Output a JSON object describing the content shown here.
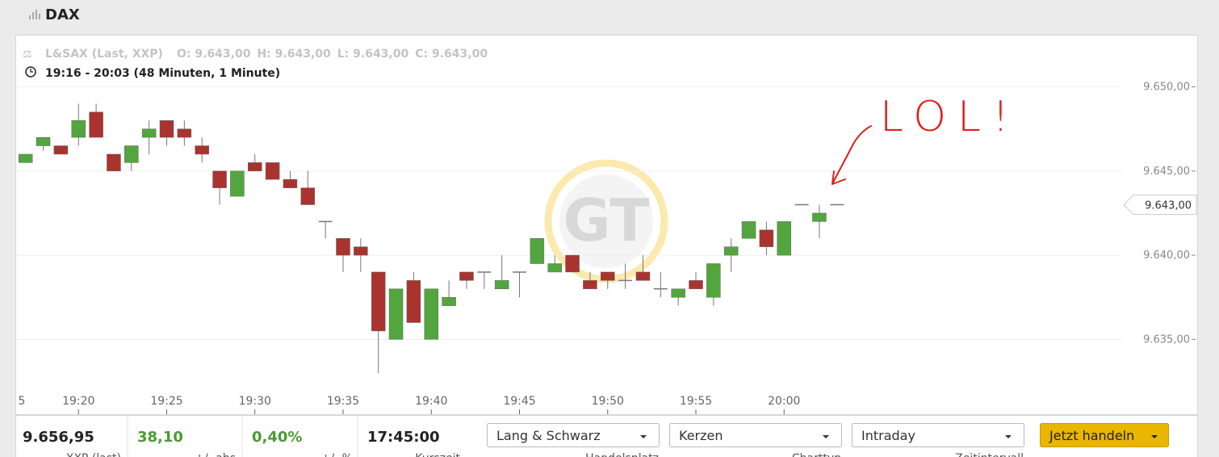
{
  "header": {
    "title": "DAX"
  },
  "chart_data": {
    "type": "candlestick",
    "source_info": "L&SAX (Last, XXP)",
    "ohlc_info": [
      "O: 9.643,00",
      "H: 9.643,00",
      "L: 9.643,00",
      "C: 9.643,00"
    ],
    "range_info": "19:16 - 20:03 (48 Minuten, 1 Minute)",
    "categories": [
      "5",
      null,
      null,
      null,
      null,
      "19:20",
      null,
      null,
      null,
      null,
      "19:25",
      null,
      null,
      null,
      null,
      "19:30",
      null,
      null,
      null,
      null,
      "19:35",
      null,
      null,
      null,
      null,
      "19:40",
      null,
      null,
      null,
      null,
      "19:45",
      null,
      null,
      null,
      null,
      "19:50",
      null,
      null,
      null,
      null,
      "19:55",
      null,
      null,
      null,
      null,
      "20:00",
      null,
      null,
      null
    ],
    "open": [
      null,
      null,
      9645.5,
      9646.5,
      9646.5,
      9647,
      9648.5,
      9646,
      9645.5,
      9647,
      9648,
      9647.5,
      9646.5,
      9645,
      9643.5,
      9645.5,
      9645.5,
      9644.5,
      9644,
      9642,
      9641,
      9640.5,
      9639,
      9635,
      9638.5,
      9635,
      9637,
      9639,
      9639,
      9638,
      9639,
      9639.5,
      9639,
      9640,
      9638.5,
      9639,
      9638.5,
      9639,
      9638,
      9637.5,
      9638.5,
      9637.5,
      9640,
      9641,
      9641.5,
      9640,
      9643,
      9642,
      9643
    ],
    "high": [
      null,
      null,
      9646,
      9647,
      9646.5,
      9649,
      9649,
      9646,
      9646.5,
      9648,
      9648,
      9648,
      9647,
      9645,
      9645,
      9646,
      9645.5,
      9645,
      9645,
      9642,
      9641,
      9641,
      9639,
      9638,
      9639,
      9638,
      9638.5,
      9639,
      9639,
      9640,
      9639,
      9641,
      9640,
      9640,
      9639,
      9639,
      9639.5,
      9640,
      9639,
      9638,
      9639,
      9639.5,
      9641,
      9642,
      9642,
      9642,
      9643,
      9643,
      9643
    ],
    "low": [
      null,
      null,
      9645.5,
      9646.2,
      9646,
      9646.5,
      9647,
      9645,
      9645,
      9646,
      9646.5,
      9646.5,
      9645.5,
      9643,
      9643.5,
      9645,
      9644.5,
      9644,
      9643,
      9641,
      9639,
      9639,
      9633,
      9635,
      9636,
      9635,
      9637,
      9638,
      9638,
      9638,
      9637.5,
      9639.5,
      9639,
      9639,
      9638,
      9638,
      9638,
      9638.5,
      9637.5,
      9637,
      9638,
      9637,
      9639,
      9641,
      9640,
      9640,
      9643,
      9641,
      9643
    ],
    "close": [
      null,
      null,
      9646,
      9647,
      9646,
      9648,
      9647,
      9645,
      9646.5,
      9647.5,
      9647,
      9647,
      9646,
      9644,
      9645,
      9645,
      9644.5,
      9644,
      9643,
      9642,
      9640,
      9640,
      9635.5,
      9638,
      9636,
      9638,
      9637.5,
      9638.5,
      9639,
      9638.5,
      9639,
      9641,
      9639.5,
      9639,
      9638,
      9638.5,
      9638.5,
      9638.5,
      9638,
      9638,
      9638,
      9639.5,
      9640.5,
      9642,
      9640.5,
      9642,
      9643,
      9642.5,
      9643
    ],
    "up_color": "#52a63d",
    "down_color": "#a8332f",
    "doji_color": "#7a7a7a",
    "ylim": [
      9631.9,
      9653
    ],
    "yticks": [
      {
        "value": 9635,
        "label": "9.635,00"
      },
      {
        "value": 9640,
        "label": "9.640,00"
      },
      {
        "value": 9645,
        "label": "9.645,00"
      },
      {
        "value": 9650,
        "label": "9.650,00"
      }
    ],
    "grid": true,
    "last_price": {
      "value": 9643,
      "label": "9.643,00"
    },
    "annotation": "LOL!",
    "watermark": "GT"
  },
  "toolbar": {
    "stats": [
      {
        "value": "9.656,95",
        "label": "XXP (last)"
      },
      {
        "value": "38,10",
        "label": "+/- abs"
      },
      {
        "value": "0,40%",
        "label": "+/- %"
      },
      {
        "value": "17:45:00",
        "label": "Kurszeit"
      }
    ],
    "selects": [
      {
        "value": "Lang & Schwarz",
        "label": "Handelsplatz"
      },
      {
        "value": "Kerzen",
        "label": "Charttyp"
      },
      {
        "value": "Intraday",
        "label": "Zeitintervall"
      }
    ],
    "button": "Jetzt handeln"
  }
}
